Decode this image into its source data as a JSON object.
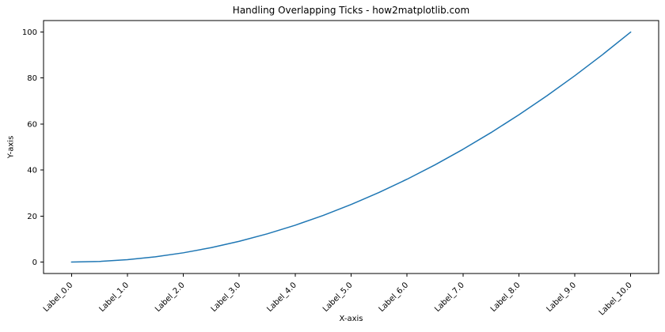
{
  "chart_data": {
    "type": "line",
    "title": "Handling Overlapping Ticks - how2matplotlib.com",
    "xlabel": "X-axis",
    "ylabel": "Y-axis",
    "xlim": [
      -0.5,
      10.5
    ],
    "ylim": [
      -5,
      105
    ],
    "grid": false,
    "legend": null,
    "line_color": "#1f77b4",
    "axes_frame_color": "#000000",
    "text_color": "#000000",
    "x_ticks": [
      0,
      1,
      2,
      3,
      4,
      5,
      6,
      7,
      8,
      9,
      10
    ],
    "x_tick_labels": [
      "Label_0.0",
      "Label_1.0",
      "Label_2.0",
      "Label_3.0",
      "Label_4.0",
      "Label_5.0",
      "Label_6.0",
      "Label_7.0",
      "Label_8.0",
      "Label_9.0",
      "Label_10.0"
    ],
    "x_tick_rotation_deg": 45,
    "y_ticks": [
      0,
      20,
      40,
      60,
      80,
      100
    ],
    "y_tick_labels": [
      "0",
      "20",
      "40",
      "60",
      "80",
      "100"
    ],
    "series": [
      {
        "x": [
          0,
          0.5,
          1,
          1.5,
          2,
          2.5,
          3,
          3.5,
          4,
          4.5,
          5,
          5.5,
          6,
          6.5,
          7,
          7.5,
          8,
          8.5,
          9,
          9.5,
          10
        ],
        "y": [
          0,
          0.25,
          1,
          2.25,
          4,
          6.25,
          9,
          12.25,
          16,
          20.25,
          25,
          30.25,
          36,
          42.25,
          49,
          56.25,
          64,
          72.25,
          81,
          90.25,
          100
        ]
      }
    ]
  }
}
